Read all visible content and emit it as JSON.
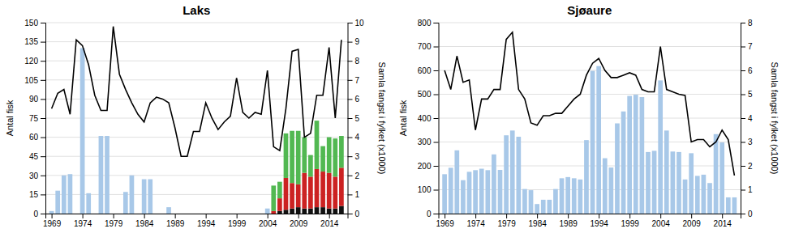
{
  "chart_data": [
    {
      "type": "bar",
      "title": "Laks",
      "x": [
        1969,
        1970,
        1971,
        1972,
        1973,
        1974,
        1975,
        1976,
        1977,
        1978,
        1979,
        1980,
        1981,
        1982,
        1983,
        1984,
        1985,
        1986,
        1987,
        1988,
        1989,
        1990,
        1991,
        1992,
        1993,
        1994,
        1995,
        1996,
        1997,
        1998,
        1999,
        2000,
        2001,
        2002,
        2003,
        2004,
        2005,
        2006,
        2007,
        2008,
        2009,
        2010,
        2011,
        2012,
        2013,
        2014,
        2015,
        2016
      ],
      "xlim": [
        1968,
        2017
      ],
      "xticks": [
        1969,
        1974,
        1979,
        1984,
        1989,
        1994,
        1999,
        2004,
        2009,
        2014
      ],
      "ylabel": "Antal fisk",
      "y2label": "Samla fangst i fylket (x1000)",
      "ylim": [
        0,
        150
      ],
      "yticks": [
        0,
        15,
        30,
        45,
        60,
        75,
        90,
        105,
        120,
        135,
        150
      ],
      "y2lim": [
        0,
        10
      ],
      "y2ticks": [
        0,
        1,
        2,
        3,
        4,
        5,
        6,
        7,
        8,
        9,
        10
      ],
      "grid": true,
      "stacked": true,
      "series": [
        {
          "type": "bar",
          "color": "#a8c8e8",
          "values": [
            2,
            18,
            30,
            31,
            0,
            130,
            16,
            0,
            61,
            61,
            0,
            0,
            17,
            30,
            0,
            27,
            27,
            0,
            0,
            5,
            0,
            0,
            0,
            0,
            0,
            0,
            0,
            0,
            0,
            0,
            0,
            0,
            0,
            0,
            0,
            4,
            0,
            0,
            0,
            0,
            0,
            0,
            0,
            0,
            0,
            0,
            0,
            0
          ]
        },
        {
          "type": "bar",
          "color": "#111111",
          "values": [
            0,
            0,
            0,
            0,
            0,
            0,
            0,
            0,
            0,
            0,
            0,
            0,
            0,
            0,
            0,
            0,
            0,
            0,
            0,
            0,
            0,
            0,
            0,
            0,
            0,
            0,
            0,
            0,
            0,
            0,
            0,
            0,
            0,
            0,
            0,
            0,
            0,
            2,
            3,
            4,
            5,
            4,
            4,
            5,
            5,
            4,
            4,
            6
          ]
        },
        {
          "type": "bar",
          "color": "#cc2222",
          "values": [
            0,
            0,
            0,
            0,
            0,
            0,
            0,
            0,
            0,
            0,
            0,
            0,
            0,
            0,
            0,
            0,
            0,
            0,
            0,
            0,
            0,
            0,
            0,
            0,
            0,
            0,
            0,
            0,
            0,
            0,
            0,
            0,
            0,
            0,
            0,
            0,
            2,
            10,
            25,
            20,
            18,
            28,
            25,
            30,
            28,
            28,
            25,
            30
          ]
        },
        {
          "type": "bar",
          "color": "#52b852",
          "values": [
            0,
            0,
            0,
            0,
            0,
            0,
            0,
            0,
            0,
            0,
            0,
            0,
            0,
            0,
            0,
            0,
            0,
            0,
            0,
            0,
            0,
            0,
            0,
            0,
            0,
            0,
            0,
            0,
            0,
            0,
            0,
            0,
            0,
            0,
            0,
            0,
            20,
            13,
            35,
            41,
            42,
            28,
            17,
            38,
            20,
            28,
            30,
            25
          ]
        },
        {
          "type": "line",
          "axis": "y2",
          "color": "#000000",
          "values": [
            5.5,
            6.3,
            6.5,
            5.2,
            9.1,
            8.8,
            7.8,
            6.2,
            5.4,
            5.4,
            9.8,
            7.3,
            6.5,
            5.8,
            5.2,
            4.8,
            5.8,
            6.1,
            6.0,
            5.8,
            4.5,
            3.0,
            3.0,
            4.3,
            4.3,
            5.8,
            5.0,
            4.4,
            4.8,
            5.1,
            7.1,
            5.3,
            5.0,
            5.3,
            5.2,
            7.5,
            3.5,
            3.3,
            5.5,
            8.5,
            8.6,
            4.0,
            4.2,
            6.2,
            6.2,
            8.7,
            5.0,
            9.1
          ]
        }
      ]
    },
    {
      "type": "bar",
      "title": "Sjøaure",
      "x": [
        1969,
        1970,
        1971,
        1972,
        1973,
        1974,
        1975,
        1976,
        1977,
        1978,
        1979,
        1980,
        1981,
        1982,
        1983,
        1984,
        1985,
        1986,
        1987,
        1988,
        1989,
        1990,
        1991,
        1992,
        1993,
        1994,
        1995,
        1996,
        1997,
        1998,
        1999,
        2000,
        2001,
        2002,
        2003,
        2004,
        2005,
        2006,
        2007,
        2008,
        2009,
        2010,
        2011,
        2012,
        2013,
        2014,
        2015,
        2016
      ],
      "xlim": [
        1968,
        2017
      ],
      "xticks": [
        1969,
        1974,
        1979,
        1984,
        1989,
        1994,
        1999,
        2004,
        2009,
        2014
      ],
      "ylabel": "Antal fisk",
      "y2label": "Samla fangst i fylket (x1000)",
      "ylim": [
        0,
        800
      ],
      "yticks": [
        0,
        100,
        200,
        300,
        400,
        500,
        600,
        700,
        800
      ],
      "y2lim": [
        0,
        8
      ],
      "y2ticks": [
        0,
        1,
        2,
        3,
        4,
        5,
        6,
        7,
        8
      ],
      "grid": true,
      "series": [
        {
          "type": "bar",
          "color": "#a8c8e8",
          "values": [
            165,
            192,
            265,
            140,
            175,
            182,
            188,
            182,
            248,
            183,
            328,
            348,
            322,
            103,
            98,
            40,
            58,
            58,
            103,
            148,
            153,
            148,
            143,
            308,
            598,
            618,
            232,
            193,
            378,
            428,
            493,
            498,
            488,
            258,
            263,
            558,
            348,
            260,
            258,
            143,
            253,
            158,
            163,
            128,
            333,
            298,
            68,
            68
          ]
        },
        {
          "type": "line",
          "axis": "y2",
          "color": "#000000",
          "values": [
            6.0,
            5.2,
            6.6,
            5.5,
            5.6,
            3.5,
            4.8,
            4.8,
            5.2,
            5.2,
            7.3,
            7.6,
            5.2,
            4.8,
            3.8,
            3.7,
            4.1,
            4.1,
            4.2,
            4.2,
            4.5,
            4.8,
            5.0,
            5.8,
            6.3,
            6.5,
            6.0,
            5.7,
            5.7,
            5.8,
            5.9,
            5.8,
            5.2,
            5.1,
            5.1,
            7.0,
            5.2,
            5.1,
            5.0,
            4.95,
            3.0,
            3.1,
            3.1,
            2.8,
            3.0,
            3.5,
            3.1,
            1.6
          ]
        }
      ]
    }
  ]
}
